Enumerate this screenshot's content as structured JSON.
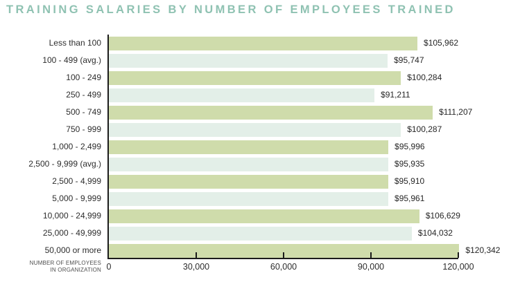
{
  "title": "TRAINING SALARIES BY NUMBER OF EMPLOYEES TRAINED",
  "colors": {
    "title": "#8fc2b2",
    "bar_odd": "#cfdcab",
    "bar_even": "#e3efe8",
    "axis": "#1b1b1b",
    "label_text": "#2d2d2d",
    "caption_text": "#4e4e4e"
  },
  "chart_data": {
    "type": "bar",
    "orientation": "horizontal",
    "title": "TRAINING SALARIES BY NUMBER OF EMPLOYEES TRAINED",
    "categories": [
      "Less than 100",
      "100 - 499 (avg.)",
      "100 - 249",
      "250 - 499",
      "500 - 749",
      "750 - 999",
      "1,000 - 2,499",
      "2,500 - 9,999 (avg.)",
      "2,500 - 4,999",
      "5,000 - 9,999",
      "10,000 - 24,999",
      "25,000 - 49,999",
      "50,000 or more"
    ],
    "values": [
      105962,
      95747,
      100284,
      91211,
      111207,
      100287,
      95996,
      95935,
      95910,
      95961,
      106629,
      104032,
      120342
    ],
    "value_labels": [
      "$105,962",
      "$95,747",
      "$100,284",
      "$91,211",
      "$111,207",
      "$100,287",
      "$95,996",
      "$95,935",
      "$95,910",
      "$95,961",
      "$106,629",
      "$104,032",
      "$120,342"
    ],
    "xlabel_lines": [
      "NUMBER OF EMPLOYEES",
      "IN ORGANIZATION"
    ],
    "ylabel": "",
    "x_ticks": [
      {
        "value": 0,
        "label": "0"
      },
      {
        "value": 30000,
        "label": "30,000"
      },
      {
        "value": 60000,
        "label": "60,000"
      },
      {
        "value": 90000,
        "label": "90,000"
      },
      {
        "value": 120000,
        "label": "120,000"
      }
    ],
    "xlim": [
      0,
      120000
    ],
    "grid": false,
    "legend": false,
    "bar_color_pattern": [
      "#cfdcab",
      "#e3efe8"
    ]
  }
}
